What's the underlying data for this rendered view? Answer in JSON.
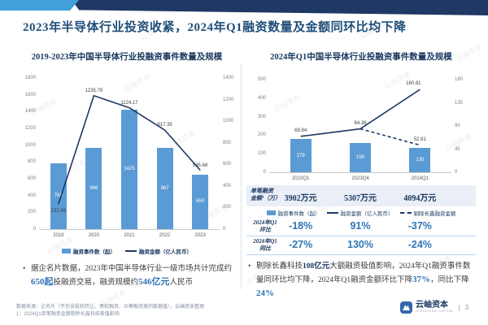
{
  "page": {
    "title": "2023年半导体行业投资收紧，2024年Q1融资数量及金额同环比均下降",
    "watermark": "云岫资本"
  },
  "chart_data": [
    {
      "type": "combo-bar-line",
      "title": "2019-2023年中国半导体行业投融资事件数量及规模",
      "categories": [
        "2019",
        "2020",
        "2021",
        "2022",
        "2023"
      ],
      "series": [
        {
          "name": "融资事件数（起）",
          "type": "bar",
          "axis": "left",
          "values": [
            785,
            966,
            1425,
            967,
            650
          ]
        },
        {
          "name": "融资金额（亿人民币）",
          "type": "line",
          "axis": "right",
          "values": [
            231.96,
            1235.79,
            1124.17,
            917.35,
            545.68
          ]
        }
      ],
      "left_axis": {
        "min": 0,
        "max": 1800,
        "step": 200
      },
      "right_axis": {
        "min": 0,
        "max": 1400,
        "step": 200
      },
      "legend_items": [
        {
          "swatch": "bar",
          "label": "融资事件数（起）"
        },
        {
          "swatch": "line",
          "label": "融资金额（亿人民币）"
        }
      ],
      "grid": false,
      "legend_position": "bottom"
    },
    {
      "type": "combo-bar-line",
      "title": "2024年Q1中国半导体行业投融资事件数量及规模",
      "categories": [
        "2023Q1",
        "2023Q4",
        "2024Q1"
      ],
      "series": [
        {
          "name": "融资事件数（起）",
          "type": "bar",
          "axis": "left",
          "values": [
            179,
            158,
            130
          ]
        },
        {
          "name": "融资金额（亿人民币）",
          "type": "line",
          "axis": "right",
          "values": [
            69.84,
            84.38,
            160.81
          ]
        },
        {
          "name": "剔除长鑫融资金额",
          "type": "line-dashed",
          "axis": "right",
          "values": [
            null,
            84.38,
            52.81
          ]
        }
      ],
      "left_axis": {
        "min": 0,
        "max": 500,
        "step": 100
      },
      "right_axis": {
        "min": 0,
        "max": 180,
        "step": 45
      },
      "legend_items": [
        {
          "swatch": "bar",
          "label": "融资事件数（起）"
        },
        {
          "swatch": "line",
          "label": "融资金额（亿人民币）"
        },
        {
          "swatch": "dash",
          "label": "剔除长鑫融资金额"
        }
      ],
      "grid": false,
      "legend_position": "bottom"
    }
  ],
  "right_panel": {
    "per_deal": {
      "label_line1": "单笔融资",
      "label_line2": "金额¹（万）",
      "values": [
        "3902万元",
        "5307万元",
        "4094万元"
      ]
    },
    "table_rows": [
      {
        "label_line1": "2024年Q1",
        "label_line2": "环比",
        "values": [
          "-18%",
          "91%",
          "-37%"
        ]
      },
      {
        "label_line1": "2024年Q1",
        "label_line2": "同比",
        "values": [
          "-27%",
          "130%",
          "-24%"
        ]
      }
    ],
    "bullet": [
      {
        "t": "剔除长鑫科技",
        "s": "normal"
      },
      {
        "t": "108亿元",
        "s": "strong"
      },
      {
        "t": "大额融资极值影响，2024年Q1融资事件数量同环比均下降，2024年Q1融资金额环比下降",
        "s": "normal"
      },
      {
        "t": "37%",
        "s": "em"
      },
      {
        "t": "，同比",
        "s": "normal"
      },
      {
        "t": "下降",
        "s": "normal"
      },
      {
        "t": "24%",
        "s": "em"
      }
    ]
  },
  "left_panel": {
    "bullet": [
      {
        "t": "据企名片数据，2023年中国半导体行业一级市场共计完成约",
        "s": "normal"
      },
      {
        "t": "650起",
        "s": "em"
      },
      {
        "t": "投融资交易，融资规模约",
        "s": "normal"
      },
      {
        "t": "546亿元",
        "s": "em"
      },
      {
        "t": "人民币",
        "s": "normal"
      }
    ],
    "bullet_marker": "•"
  },
  "footer": {
    "source": "数据来源：企名片（不包含股权转让、债权融资、众筹融资类的数据值），云岫资本整理",
    "note": "1：2024Q1单笔融资金额剔除长鑫科技极值影响",
    "logo_name": "云岫资本",
    "logo_subtitle": "CLOUDVIEW CAPITAL",
    "page_separator": "|",
    "page_number": "3"
  },
  "colors": {
    "bar": "#5B9BD5",
    "line": "#1F3864",
    "accent": "#2E75B6",
    "banner_navy": "#1F3864",
    "banner_light": "#41A0DC"
  }
}
